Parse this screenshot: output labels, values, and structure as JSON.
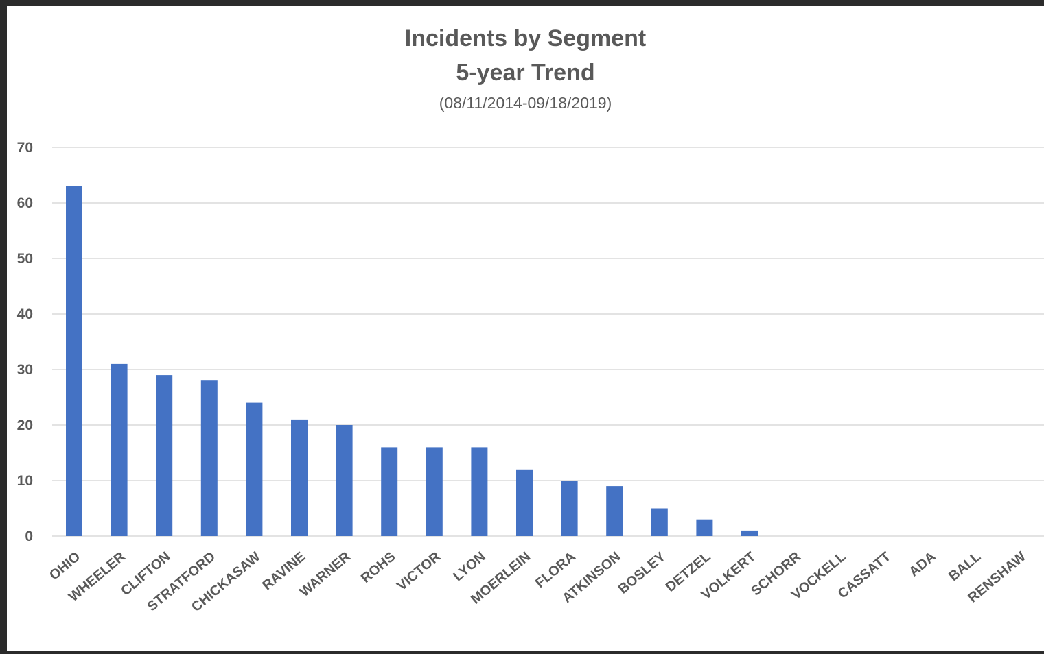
{
  "chart_data": {
    "type": "bar",
    "title_lines": [
      "Incidents by Segment",
      "5-year Trend"
    ],
    "subtitle": "(08/11/2014-09/18/2019)",
    "categories": [
      "OHIO",
      "WHEELER",
      "CLIFTON",
      "STRATFORD",
      "CHICKASAW",
      "RAVINE",
      "WARNER",
      "ROHS",
      "VICTOR",
      "LYON",
      "MOERLEIN",
      "FLORA",
      "ATKINSON",
      "BOSLEY",
      "DETZEL",
      "VOLKERT",
      "SCHORR",
      "VOCKELL",
      "CASSATT",
      "ADA",
      "BALL",
      "RENSHAW"
    ],
    "values": [
      63,
      31,
      29,
      28,
      24,
      21,
      20,
      16,
      16,
      16,
      12,
      10,
      9,
      5,
      3,
      1,
      0,
      0,
      0,
      0,
      0,
      0
    ],
    "ylim": [
      0,
      70
    ],
    "yticks": [
      0,
      10,
      20,
      30,
      40,
      50,
      60,
      70
    ],
    "grid": true,
    "legend": "none",
    "bar_color": "#4472c4",
    "grid_color": "#e3e3e3",
    "text_color": "#595959"
  }
}
